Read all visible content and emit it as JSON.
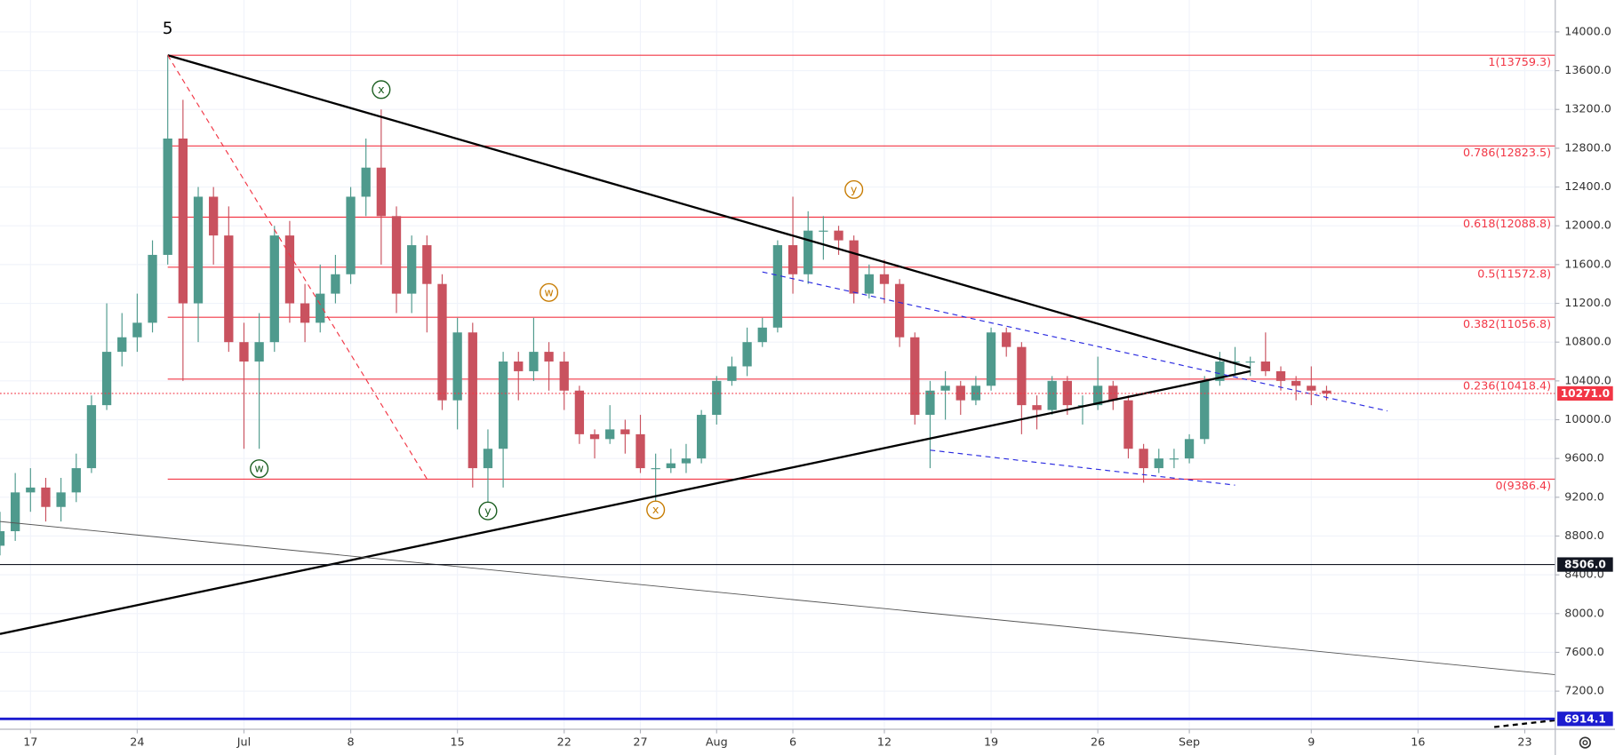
{
  "chart_data": {
    "type": "candlestick",
    "x": [
      "06-15",
      "06-16",
      "06-17",
      "06-18",
      "06-19",
      "06-20",
      "06-21",
      "06-22",
      "06-23",
      "06-24",
      "06-25",
      "06-26",
      "06-27",
      "06-28",
      "06-29",
      "06-30",
      "07-01",
      "07-02",
      "07-03",
      "07-04",
      "07-05",
      "07-06",
      "07-07",
      "07-08",
      "07-09",
      "07-10",
      "07-11",
      "07-12",
      "07-13",
      "07-14",
      "07-15",
      "07-16",
      "07-17",
      "07-18",
      "07-19",
      "07-20",
      "07-21",
      "07-22",
      "07-23",
      "07-24",
      "07-25",
      "07-26",
      "07-27",
      "07-28",
      "07-29",
      "07-30",
      "07-31",
      "08-01",
      "08-02",
      "08-03",
      "08-04",
      "08-05",
      "08-06",
      "08-07",
      "08-08",
      "08-09",
      "08-10",
      "08-11",
      "08-12",
      "08-13",
      "08-14",
      "08-15",
      "08-16",
      "08-17",
      "08-18",
      "08-19",
      "08-20",
      "08-21",
      "08-22",
      "08-23",
      "08-24",
      "08-25",
      "08-26",
      "08-27",
      "08-28",
      "08-29",
      "08-30",
      "08-31",
      "09-01",
      "09-02",
      "09-03",
      "09-04",
      "09-05",
      "09-06",
      "09-07",
      "09-08",
      "09-09",
      "09-10"
    ],
    "open": [
      8700,
      8850,
      9250,
      9300,
      9100,
      9250,
      9500,
      10150,
      10700,
      10850,
      11000,
      11700,
      12900,
      11200,
      12300,
      11900,
      10800,
      10600,
      10800,
      11900,
      11200,
      11000,
      11300,
      11500,
      12300,
      12600,
      12100,
      11300,
      11800,
      11400,
      10200,
      10900,
      9500,
      9700,
      10600,
      10500,
      10700,
      10600,
      10300,
      9850,
      9800,
      9900,
      9850,
      9500,
      9500,
      9550,
      9600,
      10050,
      10400,
      10550,
      10800,
      10950,
      11800,
      11500,
      11950,
      11950,
      11850,
      11300,
      11500,
      11400,
      10850,
      10050,
      10300,
      10350,
      10200,
      10350,
      10900,
      10750,
      10150,
      10100,
      10400,
      10150,
      10150,
      10350,
      10200,
      9700,
      9500,
      9600,
      9600,
      9800,
      10400,
      10600,
      10600,
      10600,
      10500,
      10400,
      10350,
      10300
    ],
    "high": [
      9050,
      9450,
      9500,
      9400,
      9400,
      9650,
      10250,
      11200,
      11100,
      11300,
      11850,
      13759,
      13300,
      12400,
      12400,
      12200,
      11000,
      11100,
      12000,
      12050,
      11400,
      11600,
      11700,
      12400,
      12900,
      13200,
      12200,
      11900,
      11900,
      11500,
      11050,
      11000,
      9900,
      10700,
      10700,
      11050,
      10800,
      10700,
      10350,
      9900,
      10150,
      10000,
      10050,
      9650,
      9700,
      9750,
      10100,
      10450,
      10650,
      10950,
      11050,
      11850,
      12300,
      12150,
      12100,
      12000,
      11900,
      11600,
      11650,
      11450,
      10900,
      10400,
      10500,
      10400,
      10450,
      10950,
      10950,
      10800,
      10250,
      10450,
      10450,
      10250,
      10650,
      10400,
      10250,
      9750,
      9700,
      9700,
      9850,
      10450,
      10700,
      10750,
      10650,
      10900,
      10550,
      10450,
      10550,
      10350
    ],
    "low": [
      8600,
      8750,
      9050,
      8950,
      8950,
      9150,
      9450,
      10100,
      10550,
      10700,
      10900,
      11600,
      10400,
      10800,
      11600,
      10700,
      9700,
      9700,
      10700,
      11000,
      10800,
      10900,
      11200,
      11400,
      12100,
      11600,
      11100,
      11100,
      10900,
      10100,
      9900,
      9300,
      9100,
      9300,
      10200,
      10400,
      10300,
      10100,
      9750,
      9600,
      9750,
      9650,
      9450,
      9100,
      9450,
      9450,
      9550,
      9950,
      10350,
      10450,
      10750,
      10900,
      11300,
      11400,
      11650,
      11700,
      11200,
      11250,
      11200,
      10750,
      9950,
      9500,
      10000,
      10050,
      10150,
      10300,
      10650,
      9850,
      9900,
      10050,
      10050,
      9950,
      10100,
      10100,
      9600,
      9350,
      9450,
      9500,
      9550,
      9750,
      10350,
      10450,
      10450,
      10450,
      10300,
      10200,
      10150,
      10200
    ],
    "close": [
      8850,
      9250,
      9300,
      9100,
      9250,
      9500,
      10150,
      10700,
      10850,
      11000,
      11700,
      12900,
      11200,
      12300,
      11900,
      10800,
      10600,
      10800,
      11900,
      11200,
      11000,
      11300,
      11500,
      12300,
      12600,
      12100,
      11300,
      11800,
      11400,
      10200,
      10900,
      9500,
      9700,
      10600,
      10500,
      10700,
      10600,
      10300,
      9850,
      9800,
      9900,
      9850,
      9500,
      9500,
      9550,
      9600,
      10050,
      10400,
      10550,
      10800,
      10950,
      11800,
      11500,
      11950,
      11950,
      11850,
      11300,
      11500,
      11400,
      10850,
      10050,
      10300,
      10350,
      10200,
      10350,
      10900,
      10750,
      10150,
      10100,
      10400,
      10150,
      10150,
      10350,
      10200,
      9700,
      9500,
      9600,
      9600,
      9800,
      10400,
      10600,
      10600,
      10600,
      10500,
      10400,
      10350,
      10300,
      10271
    ],
    "up_color": "#4f9a8d",
    "down_color": "#c9525f",
    "xlim": [
      "06-15",
      "09-25"
    ],
    "xticks": [
      {
        "value": "06-17",
        "label": "17"
      },
      {
        "value": "06-24",
        "label": "24"
      },
      {
        "value": "07-01",
        "label": "Jul"
      },
      {
        "value": "07-08",
        "label": "8"
      },
      {
        "value": "07-15",
        "label": "15"
      },
      {
        "value": "07-22",
        "label": "22"
      },
      {
        "value": "07-27",
        "label": "27"
      },
      {
        "value": "08-01",
        "label": "Aug"
      },
      {
        "value": "08-06",
        "label": "6"
      },
      {
        "value": "08-12",
        "label": "12"
      },
      {
        "value": "08-19",
        "label": "19"
      },
      {
        "value": "08-26",
        "label": "26"
      },
      {
        "value": "09-01",
        "label": "Sep"
      },
      {
        "value": "09-09",
        "label": "9"
      },
      {
        "value": "09-16",
        "label": "16"
      },
      {
        "value": "09-23",
        "label": "23"
      }
    ],
    "ylim": [
      6807,
      14329
    ],
    "yticks": [
      {
        "value": 7200,
        "label": "7200.0"
      },
      {
        "value": 7600,
        "label": "7600.0"
      },
      {
        "value": 8000,
        "label": "8000.0"
      },
      {
        "value": 8400,
        "label": "8400.0"
      },
      {
        "value": 8800,
        "label": "8800.0"
      },
      {
        "value": 9200,
        "label": "9200.0"
      },
      {
        "value": 9600,
        "label": "9600.0"
      },
      {
        "value": 10000,
        "label": "10000.0"
      },
      {
        "value": 10400,
        "label": "10400.0"
      },
      {
        "value": 10800,
        "label": "10800.0"
      },
      {
        "value": 11200,
        "label": "11200.0"
      },
      {
        "value": 11600,
        "label": "11600.0"
      },
      {
        "value": 12000,
        "label": "12000.0"
      },
      {
        "value": 12400,
        "label": "12400.0"
      },
      {
        "value": 12800,
        "label": "12800.0"
      },
      {
        "value": 13200,
        "label": "13200.0"
      },
      {
        "value": 13600,
        "label": "13600.0"
      },
      {
        "value": 14000,
        "label": "14000.0"
      }
    ],
    "grid": true,
    "fib_start": "06-26",
    "fib_color": "#f23645",
    "fib_levels": [
      {
        "value": 13759.3,
        "label": "1(13759.3)"
      },
      {
        "value": 12823.5,
        "label": "0.786(12823.5)"
      },
      {
        "value": 12088.8,
        "label": "0.618(12088.8)"
      },
      {
        "value": 11572.8,
        "label": "0.5(11572.8)"
      },
      {
        "value": 11056.8,
        "label": "0.382(11056.8)"
      },
      {
        "value": 10418.4,
        "label": "0.236(10418.4)"
      },
      {
        "value": 9386.4,
        "label": "0(9386.4)"
      }
    ],
    "price_lines": [
      {
        "value": 10271.0,
        "label": "10271.0",
        "color": "#f23645",
        "style": "dotted"
      },
      {
        "value": 8506.0,
        "label": "8506.0",
        "color": "#131722",
        "style": "solid"
      },
      {
        "value": 6914.1,
        "label": "6914.1",
        "color": "#1c1ccf",
        "style": "thick"
      }
    ],
    "trendlines": [
      {
        "color": "#000000",
        "style": "solid",
        "width": 2,
        "points": [
          {
            "x": "06-26",
            "y": 13759
          },
          {
            "x": "09-05",
            "y": 10536
          }
        ]
      },
      {
        "color": "#000000",
        "style": "solid",
        "width": 2,
        "points": [
          {
            "x": "06-15",
            "y": 7790
          },
          {
            "x": "09-05",
            "y": 10500
          }
        ]
      },
      {
        "color": "#555555",
        "style": "solid",
        "width": 0.8,
        "points": [
          {
            "x": "06-15",
            "y": 8950
          },
          {
            "x": "09-25",
            "y": 7370
          }
        ]
      },
      {
        "color": "#f23645",
        "style": "dashed",
        "width": 1,
        "points": [
          {
            "x": "06-26",
            "y": 13759
          },
          {
            "x": "07-13",
            "y": 9389
          }
        ]
      },
      {
        "color": "#2a2ae0",
        "style": "dashed",
        "width": 1,
        "points": [
          {
            "x": "08-04",
            "y": 11524
          },
          {
            "x": "09-14",
            "y": 10090
          }
        ]
      },
      {
        "color": "#2a2ae0",
        "style": "dashed",
        "width": 1,
        "points": [
          {
            "x": "08-15",
            "y": 9686
          },
          {
            "x": "09-04",
            "y": 9325
          }
        ]
      },
      {
        "color": "#000000",
        "style": "dashed",
        "width": 2,
        "points": [
          {
            "x": "09-21",
            "y": 6830
          },
          {
            "x": "09-25",
            "y": 6900
          }
        ]
      }
    ],
    "wave_labels": [
      {
        "text": "5",
        "x": "06-26",
        "y": 14032,
        "color": "#000000",
        "circle": false
      },
      {
        "text": "x",
        "x": "07-10",
        "y": 13405,
        "color": "#1b5e20",
        "circle": true
      },
      {
        "text": "w",
        "x": "07-02",
        "y": 9495,
        "color": "#1b5e20",
        "circle": true
      },
      {
        "text": "y",
        "x": "07-17",
        "y": 9059,
        "color": "#1b5e20",
        "circle": true
      },
      {
        "text": "w",
        "x": "07-21",
        "y": 11312,
        "color": "#c77c02",
        "circle": true
      },
      {
        "text": "x",
        "x": "07-28",
        "y": 9070,
        "color": "#c77c02",
        "circle": true
      },
      {
        "text": "y",
        "x": "08-10",
        "y": 12374,
        "color": "#c77c02",
        "circle": true
      }
    ]
  }
}
